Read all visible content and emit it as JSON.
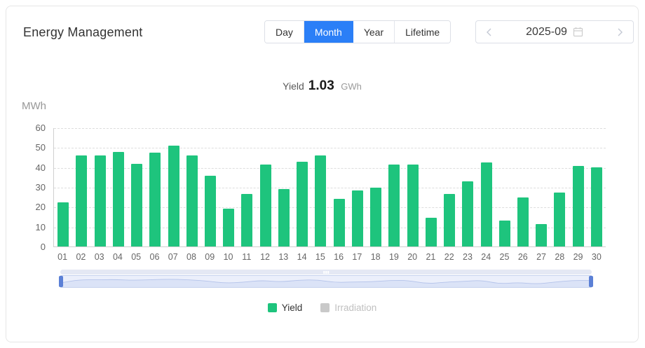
{
  "header": {
    "title": "Energy Management",
    "tabs": [
      {
        "label": "Day",
        "active": false
      },
      {
        "label": "Month",
        "active": true
      },
      {
        "label": "Year",
        "active": false
      },
      {
        "label": "Lifetime",
        "active": false
      }
    ],
    "date_nav": {
      "prev_icon": "chevron-left",
      "value": "2025-09",
      "picker_icon": "calendar",
      "next_icon": "chevron-right"
    }
  },
  "summary": {
    "label": "Yield",
    "value": "1.03",
    "unit": "GWh"
  },
  "chart_data": {
    "type": "bar",
    "title": "",
    "xlabel": "",
    "ylabel": "MWh",
    "ylim": [
      0,
      60
    ],
    "yticks": [
      0,
      10,
      20,
      30,
      40,
      50,
      60
    ],
    "grid": true,
    "legend_position": "bottom",
    "categories": [
      "01",
      "02",
      "03",
      "04",
      "05",
      "06",
      "07",
      "08",
      "09",
      "10",
      "11",
      "12",
      "13",
      "14",
      "15",
      "16",
      "17",
      "18",
      "19",
      "20",
      "21",
      "22",
      "23",
      "24",
      "25",
      "26",
      "27",
      "28",
      "29",
      "30"
    ],
    "series": [
      {
        "name": "Yield",
        "color": "#1EC47D",
        "disabled": false,
        "values": [
          22.5,
          46,
          46,
          48,
          42,
          47.5,
          51,
          46,
          36,
          19,
          26.5,
          41.5,
          29,
          43,
          46,
          24,
          28.5,
          30,
          41.5,
          41.5,
          14.5,
          26.5,
          33,
          42.5,
          13,
          25,
          11.5,
          27.5,
          41,
          40
        ]
      },
      {
        "name": "Irradiation",
        "color": "#C9C9C9",
        "disabled": true,
        "values": []
      }
    ]
  },
  "colors": {
    "accent_blue": "#2B7FF7",
    "bar_green": "#1EC47D",
    "scrollbar_handle": "#5B80D6",
    "scrollbar_fill": "#EBEFFB",
    "gridline": "#DDDDDD",
    "axis_text": "#666666"
  }
}
